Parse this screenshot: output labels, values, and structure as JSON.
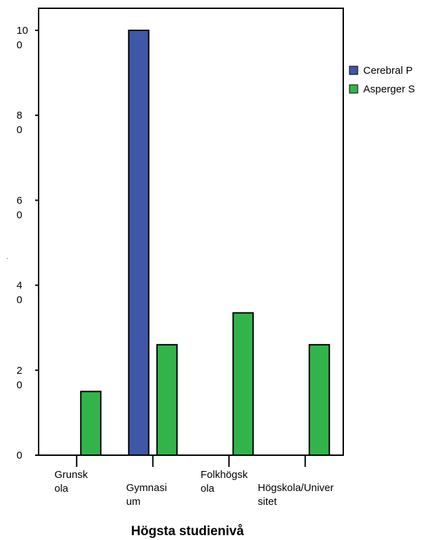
{
  "chart_data": {
    "type": "bar",
    "title": "",
    "xlabel": "Högsta studienivå",
    "ylabel": "'",
    "categories": [
      "Grunskola",
      "Gymnasium",
      "Folkhögskola",
      "Högskola/Universitet"
    ],
    "category_label_lines": [
      [
        "Grunsk",
        "ola"
      ],
      [
        "Gymnasi",
        "um"
      ],
      [
        "Folkhögsk",
        "ola"
      ],
      [
        "Högskola/Univer",
        "sitet"
      ]
    ],
    "series": [
      {
        "name": "Cerebral P",
        "color": "#3f57a6",
        "values": [
          0,
          100,
          0,
          0
        ]
      },
      {
        "name": "Asperger S",
        "color": "#33b44a",
        "values": [
          15,
          26,
          33.5,
          26
        ]
      }
    ],
    "ylim": [
      0,
      100
    ],
    "yticks": [
      0,
      20,
      40,
      60,
      80,
      100
    ],
    "ytick_label_lines": [
      [
        "0"
      ],
      [
        "2",
        "0"
      ],
      [
        "4",
        "0"
      ],
      [
        "6",
        "0"
      ],
      [
        "8",
        "0"
      ],
      [
        "10",
        "0"
      ]
    ],
    "grid": false,
    "legend_position": "top-right"
  }
}
